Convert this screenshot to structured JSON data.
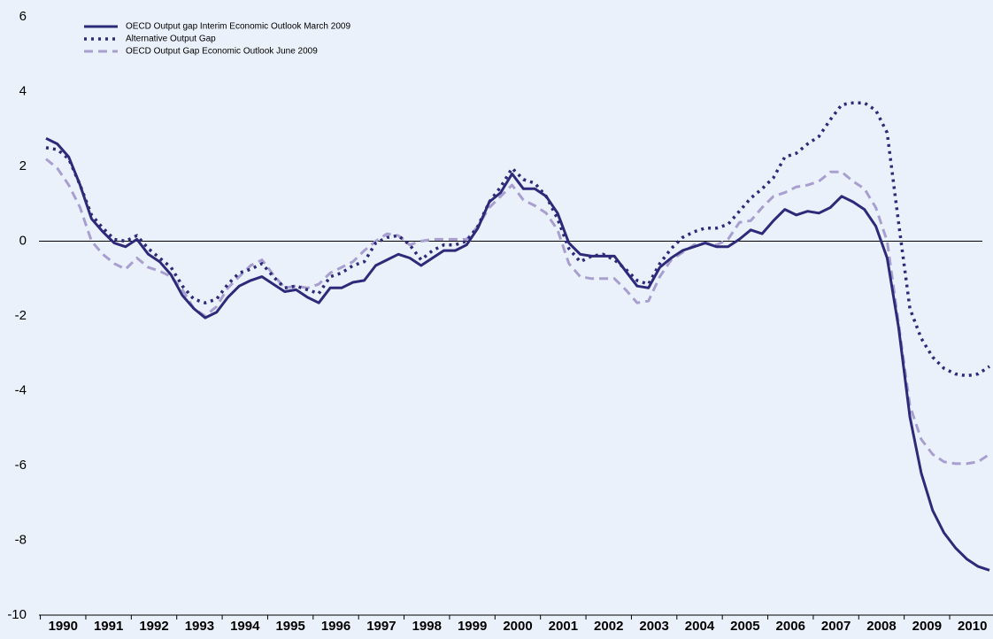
{
  "chart_data": {
    "type": "line",
    "categories": [
      "1990",
      null,
      null,
      null,
      "1991",
      null,
      null,
      null,
      "1992",
      null,
      null,
      null,
      "1993",
      null,
      null,
      null,
      "1994",
      null,
      null,
      null,
      "1995",
      null,
      null,
      null,
      "1996",
      null,
      null,
      null,
      "1997",
      null,
      null,
      null,
      "1998",
      null,
      null,
      null,
      "1999",
      null,
      null,
      null,
      "2000",
      null,
      null,
      null,
      "2001",
      null,
      null,
      null,
      "2002",
      null,
      null,
      null,
      "2003",
      null,
      null,
      null,
      "2004",
      null,
      null,
      null,
      "2005",
      null,
      null,
      null,
      "2006",
      null,
      null,
      null,
      "2007",
      null,
      null,
      null,
      "2008",
      null,
      null,
      null,
      "2009",
      null,
      null,
      null,
      "2010",
      null,
      null,
      null
    ],
    "series": [
      {
        "name": "OECD Output gap Interim Economic Outlook March 2009",
        "color": "#2e2a7a",
        "dash": "solid",
        "values": [
          2.75,
          2.6,
          2.25,
          1.5,
          0.6,
          0.25,
          -0.05,
          -0.15,
          0.05,
          -0.35,
          -0.55,
          -0.9,
          -1.45,
          -1.8,
          -2.05,
          -1.9,
          -1.5,
          -1.2,
          -1.05,
          -0.95,
          -1.15,
          -1.35,
          -1.3,
          -1.5,
          -1.65,
          -1.25,
          -1.25,
          -1.1,
          -1.05,
          -0.65,
          -0.5,
          -0.35,
          -0.45,
          -0.65,
          -0.45,
          -0.25,
          -0.25,
          -0.1,
          0.35,
          1.05,
          1.3,
          1.8,
          1.4,
          1.4,
          1.2,
          0.75,
          -0.05,
          -0.35,
          -0.4,
          -0.4,
          -0.4,
          -0.8,
          -1.2,
          -1.25,
          -0.7,
          -0.45,
          -0.25,
          -0.15,
          -0.05,
          -0.15,
          -0.15,
          0.05,
          0.3,
          0.2,
          0.55,
          0.85,
          0.7,
          0.8,
          0.75,
          0.9,
          1.2,
          1.05,
          0.85,
          0.4,
          -0.45,
          -2.3,
          -4.7,
          -6.2,
          -7.2,
          -7.8,
          -8.2,
          -8.5,
          -8.7,
          -8.8
        ]
      },
      {
        "name": "Alternative Output Gap",
        "color": "#2e2a7a",
        "dash": "dotted",
        "values": [
          2.5,
          2.45,
          2.2,
          1.5,
          0.7,
          0.35,
          0.05,
          0.0,
          0.15,
          -0.2,
          -0.45,
          -0.7,
          -1.2,
          -1.55,
          -1.65,
          -1.55,
          -1.15,
          -0.85,
          -0.75,
          -0.6,
          -0.95,
          -1.25,
          -1.2,
          -1.3,
          -1.4,
          -0.95,
          -0.85,
          -0.65,
          -0.55,
          -0.05,
          0.1,
          0.15,
          -0.1,
          -0.5,
          -0.25,
          -0.1,
          -0.1,
          0.0,
          0.4,
          1.05,
          1.45,
          1.95,
          1.65,
          1.55,
          1.2,
          0.6,
          -0.2,
          -0.55,
          -0.4,
          -0.35,
          -0.5,
          -0.75,
          -1.05,
          -1.15,
          -0.6,
          -0.2,
          0.1,
          0.25,
          0.35,
          0.35,
          0.45,
          0.8,
          1.15,
          1.4,
          1.7,
          2.25,
          2.35,
          2.6,
          2.8,
          3.25,
          3.65,
          3.7,
          3.7,
          3.5,
          2.9,
          0.5,
          -1.8,
          -2.6,
          -3.1,
          -3.4,
          -3.55,
          -3.6,
          -3.55,
          -3.35
        ]
      },
      {
        "name": "OECD Output Gap Economic Outlook June 2009",
        "color": "#a89fd0",
        "dash": "dashed",
        "values": [
          2.2,
          1.95,
          1.5,
          0.9,
          0.0,
          -0.35,
          -0.6,
          -0.75,
          -0.45,
          -0.7,
          -0.8,
          -0.95,
          -1.3,
          -1.8,
          -2.0,
          -1.75,
          -1.25,
          -0.95,
          -0.65,
          -0.5,
          -0.9,
          -1.25,
          -1.2,
          -1.25,
          -1.15,
          -0.85,
          -0.7,
          -0.55,
          -0.25,
          0.0,
          0.2,
          0.15,
          -0.1,
          0.0,
          0.05,
          0.05,
          0.05,
          0.05,
          0.4,
          0.9,
          1.2,
          1.5,
          1.1,
          0.95,
          0.75,
          0.3,
          -0.6,
          -0.95,
          -1.0,
          -1.0,
          -1.0,
          -1.3,
          -1.65,
          -1.6,
          -0.95,
          -0.5,
          -0.3,
          -0.1,
          -0.05,
          -0.1,
          0.05,
          0.5,
          0.55,
          0.9,
          1.2,
          1.3,
          1.45,
          1.5,
          1.6,
          1.85,
          1.85,
          1.6,
          1.4,
          0.9,
          0.0,
          -2.2,
          -4.4,
          -5.3,
          -5.7,
          -5.9,
          -5.95,
          -5.95,
          -5.9,
          -5.7
        ]
      }
    ],
    "ylim": [
      -10,
      6
    ],
    "yticks": [
      6,
      4,
      2,
      0,
      -2,
      -4,
      -6,
      -8,
      -10
    ],
    "grid": false,
    "legend": "top-left"
  }
}
